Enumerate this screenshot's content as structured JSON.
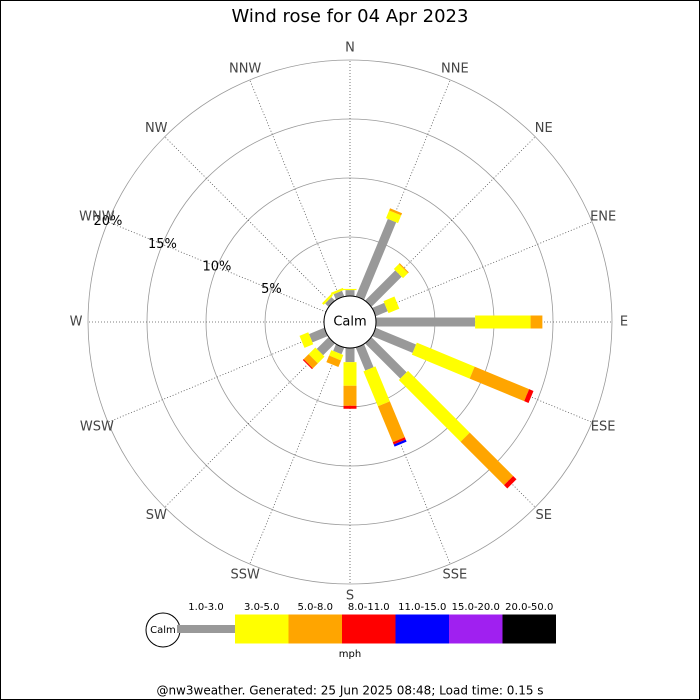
{
  "chart_data": {
    "type": "windrose",
    "title": "Wind rose for 04 Apr 2023",
    "directions": [
      "N",
      "NNE",
      "NE",
      "ENE",
      "E",
      "ESE",
      "SE",
      "SSE",
      "S",
      "SSW",
      "SW",
      "WSW",
      "W",
      "WNW",
      "NW",
      "NNW"
    ],
    "series": [
      {
        "name": "1.0-3.0",
        "color": "#999999",
        "values": [
          0.5,
          7.1,
          3.6,
          1.1,
          8.4,
          3.7,
          4.2,
          2.1,
          1.2,
          0.6,
          1.4,
          1.4,
          0,
          0,
          0.4,
          0.5
        ]
      },
      {
        "name": "3.0-5.0",
        "color": "#ffff00",
        "values": [
          0.1,
          0.7,
          0.6,
          1.0,
          4.7,
          5.3,
          7.4,
          3.2,
          2.0,
          0.5,
          0.8,
          0.8,
          0,
          0,
          0.2,
          0.2
        ]
      },
      {
        "name": "5.0-8.0",
        "color": "#ffa500",
        "values": [
          0,
          0.2,
          0.1,
          0,
          1.0,
          5.0,
          5.2,
          3.3,
          1.7,
          0.6,
          0.6,
          0,
          0,
          0,
          0,
          0
        ]
      },
      {
        "name": "8.0-11.0",
        "color": "#ff0000",
        "values": [
          0,
          0,
          0,
          0,
          0,
          0.4,
          0.4,
          0.2,
          0.25,
          0,
          0.1,
          0,
          0,
          0,
          0,
          0
        ]
      },
      {
        "name": "11.0-15.0",
        "color": "#0000ff",
        "values": [
          0,
          0,
          0,
          0,
          0,
          0,
          0,
          0.2,
          0,
          0,
          0,
          0,
          0,
          0,
          0,
          0
        ]
      },
      {
        "name": "15.0-20.0",
        "color": "#a020f0",
        "values": [
          0,
          0,
          0,
          0,
          0,
          0,
          0,
          0,
          0,
          0,
          0,
          0,
          0,
          0,
          0,
          0
        ]
      },
      {
        "name": "20.0-50.0",
        "color": "#000000",
        "values": [
          0,
          0,
          0,
          0,
          0,
          0,
          0,
          0,
          0,
          0,
          0,
          0,
          0,
          0,
          0,
          0
        ]
      }
    ],
    "ylim": [
      0,
      20
    ],
    "yticks": [
      {
        "value": 5,
        "label": "5%"
      },
      {
        "value": 10,
        "label": "10%"
      },
      {
        "value": 15,
        "label": "15%"
      },
      {
        "value": 20,
        "label": "20%"
      }
    ],
    "calm_label": "Calm",
    "unit_label": "mph",
    "footer": "@nw3weather. Generated: 25 Jun 2025 08:48; Load time: 0.15 s"
  }
}
